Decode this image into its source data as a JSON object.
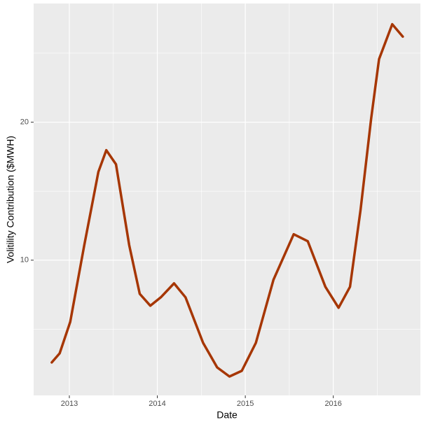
{
  "chart_data": {
    "type": "line",
    "x_label": "Date",
    "y_label": "Volitility Contribution ($MWH)",
    "x": [
      2012.8,
      2012.89,
      2013.01,
      2013.17,
      2013.33,
      2013.42,
      2013.53,
      2013.68,
      2013.8,
      2013.92,
      2014.04,
      2014.19,
      2014.32,
      2014.52,
      2014.68,
      2014.82,
      2014.96,
      2015.12,
      2015.32,
      2015.55,
      2015.71,
      2015.91,
      2016.06,
      2016.19,
      2016.31,
      2016.43,
      2016.52,
      2016.67,
      2016.79
    ],
    "series": [
      {
        "color": "#a63603",
        "values": [
          2.59,
          3.25,
          5.53,
          11.1,
          16.4,
          17.97,
          16.95,
          11.1,
          7.56,
          6.7,
          7.31,
          8.32,
          7.31,
          4.01,
          2.23,
          1.57,
          1.98,
          4.01,
          8.58,
          11.88,
          11.37,
          8.07,
          6.55,
          8.07,
          13.65,
          20.25,
          24.57,
          27.1,
          26.2
        ]
      }
    ],
    "xlim": [
      2012.594,
      2016.99
    ],
    "xticks": [
      2013,
      2014,
      2015,
      2016
    ],
    "ylim": [
      0.2,
      28.6
    ],
    "yticks": [
      10,
      20
    ],
    "grid": true
  }
}
